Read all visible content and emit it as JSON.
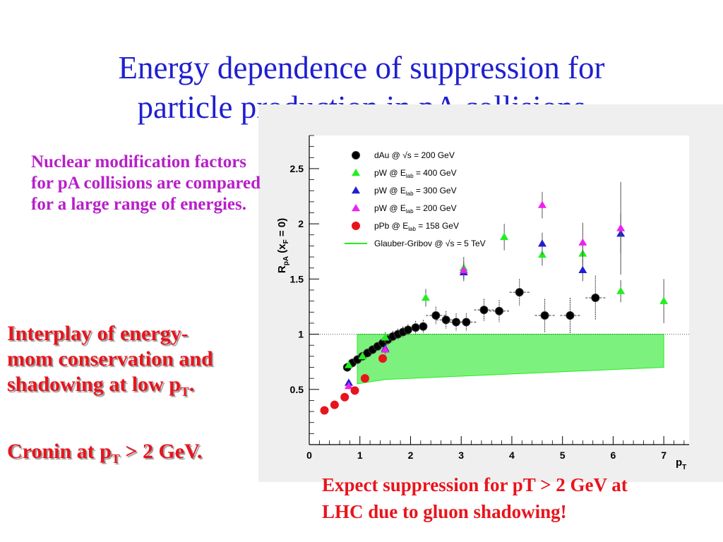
{
  "slide": {
    "title_line1": "Energy dependence of suppression for",
    "title_line2": "particle production in pA collisions",
    "left_note": "Nuclear modification factors for pA collisions are compared for a large range of energies.",
    "interplay_line1": "Interplay of energy-",
    "interplay_line2": "mom conservation and",
    "interplay_line3_pre": "shadowing at low p",
    "interplay_line3_sub": "T",
    "interplay_line3_post": ".",
    "cronin_pre": "Cronin at p",
    "cronin_sub": "T",
    "cronin_post": " > 2 GeV.",
    "bottom_note_line1": "Expect suppression for pT > 2 GeV at",
    "bottom_note_line2": "LHC due to gluon shadowing!"
  },
  "chart_data": {
    "type": "scatter",
    "ylabel_main": "R",
    "ylabel_sub": "pA",
    "ylabel_paren": "(x",
    "ylabel_paren_sub": "F",
    "ylabel_paren_post": " = 0)",
    "xlabel_main": "p",
    "xlabel_sub": "T",
    "xlim": [
      0,
      7.5
    ],
    "ylim": [
      0,
      2.8
    ],
    "x_ticks": [
      "0",
      "1",
      "2",
      "3",
      "4",
      "5",
      "6",
      "7"
    ],
    "y_ticks": [
      "0.5",
      "1",
      "1.5",
      "2",
      "2.5"
    ],
    "reference_line": 1,
    "colors": {
      "dAu": "#000000",
      "pW400": "#22ee22",
      "pW300": "#1f1fd0",
      "pW200": "#ee22ee",
      "pPb": "#e8141c",
      "band": "#66ee66"
    },
    "legend": [
      {
        "pre": "dAu @ ",
        "sqrt": "√s",
        "post": " = 200 GeV",
        "marker": "circle",
        "color": "#000000"
      },
      {
        "pre": "pW @ E",
        "sub": "lab",
        "post": " = 400 GeV",
        "marker": "triangle",
        "color": "#22ee22"
      },
      {
        "pre": "pW @ E",
        "sub": "lab",
        "post": " = 300 GeV",
        "marker": "triangle",
        "color": "#1f1fd0"
      },
      {
        "pre": "pW @ E",
        "sub": "lab",
        "post": " = 200 GeV",
        "marker": "triangle",
        "color": "#ee22ee"
      },
      {
        "pre": "pPb @ E",
        "sub": "lab",
        "post": " = 158 GeV",
        "marker": "circle",
        "color": "#e8141c"
      },
      {
        "pre": "Glauber-Gribov @ ",
        "sqrt": "√s",
        "post": " = 5 TeV",
        "marker": "line",
        "color": "#22ee22"
      }
    ],
    "series": [
      {
        "name": "dAu @ √s = 200 GeV",
        "marker": "circle",
        "color": "#000000",
        "points": [
          [
            0.75,
            0.7
          ],
          [
            0.85,
            0.74
          ],
          [
            0.95,
            0.77
          ],
          [
            1.05,
            0.8
          ],
          [
            1.15,
            0.83
          ],
          [
            1.25,
            0.86
          ],
          [
            1.35,
            0.89
          ],
          [
            1.45,
            0.92
          ],
          [
            1.55,
            0.95
          ],
          [
            1.65,
            0.98
          ],
          [
            1.75,
            1.0
          ],
          [
            1.85,
            1.02
          ],
          [
            1.95,
            1.04
          ],
          [
            2.1,
            1.06
          ],
          [
            2.25,
            1.07
          ],
          [
            2.5,
            1.17
          ],
          [
            2.7,
            1.13
          ],
          [
            2.9,
            1.11
          ],
          [
            3.1,
            1.11
          ],
          [
            3.45,
            1.22
          ],
          [
            3.75,
            1.21
          ],
          [
            4.15,
            1.38
          ],
          [
            4.65,
            1.17
          ],
          [
            5.15,
            1.17
          ],
          [
            5.65,
            1.33
          ]
        ],
        "yerr": [
          0.04,
          0.04,
          0.04,
          0.04,
          0.04,
          0.04,
          0.04,
          0.05,
          0.05,
          0.05,
          0.05,
          0.05,
          0.05,
          0.06,
          0.06,
          0.08,
          0.08,
          0.08,
          0.08,
          0.1,
          0.1,
          0.12,
          0.15,
          0.16,
          0.2
        ]
      },
      {
        "name": "pW @ Elab = 400 GeV",
        "marker": "triangle",
        "color": "#22ee22",
        "points": [
          [
            0.78,
            0.72
          ],
          [
            1.05,
            0.8
          ],
          [
            1.5,
            0.97
          ],
          [
            2.3,
            1.33
          ],
          [
            3.05,
            1.6
          ],
          [
            3.85,
            1.88
          ],
          [
            4.6,
            1.72
          ],
          [
            5.4,
            1.73
          ],
          [
            6.15,
            1.39
          ],
          [
            7.0,
            1.3
          ]
        ],
        "yerr": [
          0.03,
          0.04,
          0.05,
          0.08,
          0.1,
          0.12,
          0.1,
          0.12,
          0.1,
          0.2
        ]
      },
      {
        "name": "pW @ Elab = 300 GeV",
        "marker": "triangle",
        "color": "#1f1fd0",
        "points": [
          [
            0.78,
            0.56
          ],
          [
            1.5,
            0.87
          ],
          [
            3.05,
            1.56
          ],
          [
            4.6,
            1.82
          ],
          [
            5.4,
            1.58
          ],
          [
            6.15,
            1.91
          ]
        ],
        "yerr": [
          0.03,
          0.04,
          0.08,
          0.1,
          0.1,
          0.18
        ]
      },
      {
        "name": "pW @ Elab = 200 GeV",
        "marker": "triangle",
        "color": "#ee22ee",
        "points": [
          [
            0.78,
            0.53
          ],
          [
            1.5,
            0.86
          ],
          [
            3.05,
            1.58
          ],
          [
            4.6,
            2.17
          ],
          [
            5.4,
            1.83
          ],
          [
            6.15,
            1.96
          ]
        ],
        "yerr": [
          0.03,
          0.04,
          0.08,
          0.12,
          0.18,
          0.42
        ]
      },
      {
        "name": "pPb @ Elab = 158 GeV",
        "marker": "circle",
        "color": "#e8141c",
        "points": [
          [
            0.3,
            0.31
          ],
          [
            0.5,
            0.36
          ],
          [
            0.7,
            0.43
          ],
          [
            0.9,
            0.49
          ],
          [
            1.1,
            0.6
          ],
          [
            1.45,
            0.78
          ]
        ],
        "yerr": [
          0.02,
          0.02,
          0.02,
          0.02,
          0.03,
          0.03
        ]
      }
    ],
    "band": {
      "name": "Glauber-Gribov @ √s = 5 TeV",
      "color": "#66ee66",
      "x": [
        0.95,
        1.5,
        2.0,
        3.0,
        4.0,
        5.0,
        6.0,
        7.0
      ],
      "upper": [
        1.0,
        1.0,
        1.0,
        1.0,
        1.0,
        1.0,
        1.0,
        1.0
      ],
      "lower": [
        0.55,
        0.59,
        0.6,
        0.62,
        0.64,
        0.66,
        0.68,
        0.7
      ]
    }
  }
}
